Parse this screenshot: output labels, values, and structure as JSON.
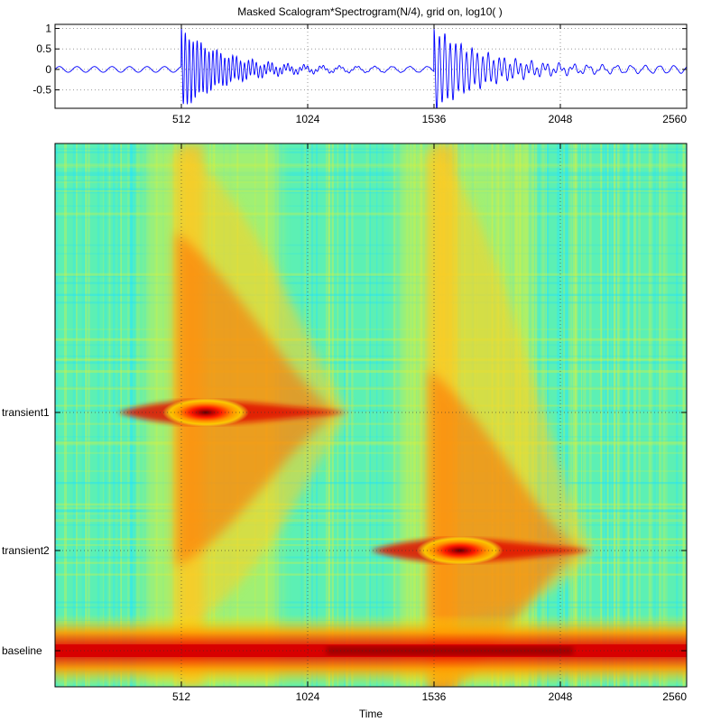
{
  "chart_data": [
    {
      "type": "line",
      "title": "Masked Scalogram*Spectrogram(N/4), grid on, log10( )",
      "xlim": [
        0,
        2560
      ],
      "ylim": [
        -0.95,
        1.1
      ],
      "grid": true,
      "xticks": [
        512,
        1024,
        1536,
        2048,
        2560
      ],
      "xtick_labels": [
        "512",
        "1024",
        "1536",
        "2048",
        "2560"
      ],
      "yticks": [
        -0.5,
        0,
        0.5,
        1
      ],
      "ytick_labels": [
        "-0.5",
        "0",
        "0.5",
        "1"
      ],
      "series": [
        {
          "color": "#0000ff",
          "baseline": {
            "amplitude": 0.07,
            "period": 71
          },
          "transients": [
            {
              "onset": 512,
              "amplitude": 0.95,
              "period": 16,
              "decay": 175
            },
            {
              "onset": 1536,
              "amplitude": 0.98,
              "period": 22,
              "decay": 200
            }
          ],
          "baseline_after_second_transient": {
            "amplitude": 0.09,
            "period": 58
          }
        }
      ]
    },
    {
      "type": "heatmap",
      "xlabel": "Time",
      "xlim": [
        0,
        2560
      ],
      "xticks": [
        512,
        1024,
        1536,
        2048,
        2560
      ],
      "xtick_labels": [
        "512",
        "1024",
        "1536",
        "2048",
        "2560"
      ],
      "ytick_labels": [
        "transient1",
        "transient2",
        "baseline"
      ],
      "colormap": "jet",
      "grid": true,
      "features": [
        {
          "label": "baseline",
          "time_range": [
            0,
            2560
          ],
          "peak_time": 1280
        },
        {
          "label": "transient1",
          "onset": 512,
          "peak_time": 530,
          "tail_end": 1190
        },
        {
          "label": "transient2",
          "onset": 1536,
          "peak_time": 1560,
          "tail_end": 2180
        }
      ]
    }
  ]
}
